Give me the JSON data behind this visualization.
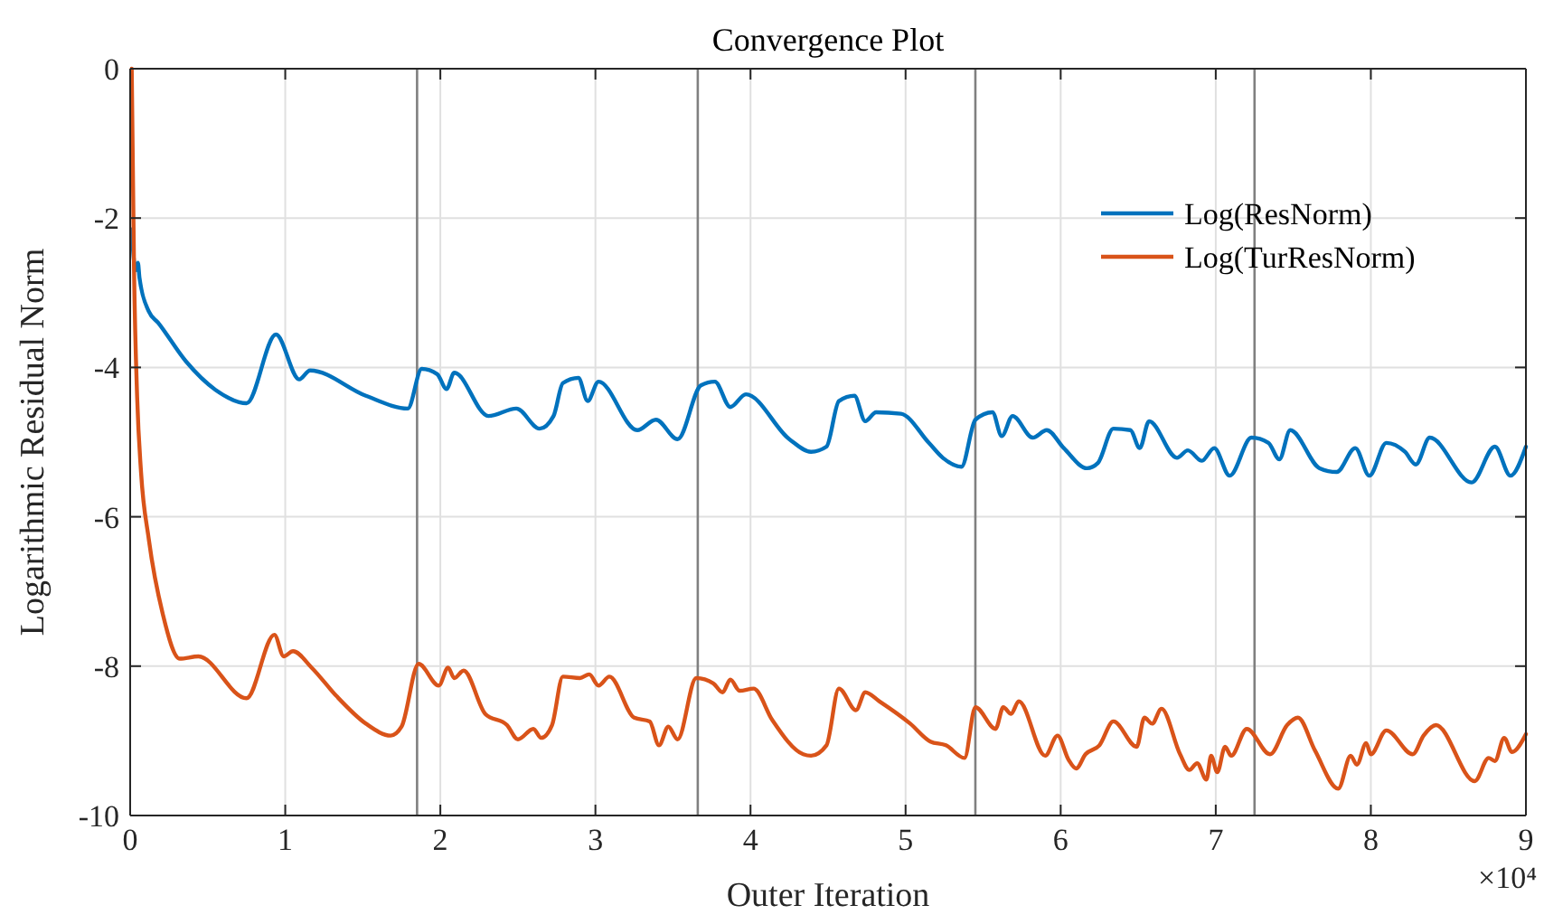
{
  "chart_data": {
    "type": "line",
    "title": "Convergence Plot",
    "xlabel": "Outer Iteration",
    "ylabel": "Logarithmic Residual Norm",
    "xlim": [
      0,
      9
    ],
    "ylim": [
      -10,
      0
    ],
    "xticks": [
      0,
      1,
      2,
      3,
      4,
      5,
      6,
      7,
      8,
      9
    ],
    "yticks": [
      -10,
      -8,
      -6,
      -4,
      -2,
      0
    ],
    "grid": true,
    "legend": "top right",
    "line_style": "solid",
    "annotations": [
      "×10⁴"
    ],
    "ref_lines": [
      {
        "axis": "x",
        "value": 1.85,
        "color": "#808080"
      },
      {
        "axis": "x",
        "value": 3.66,
        "color": "#808080"
      },
      {
        "axis": "x",
        "value": 5.45,
        "color": "#808080"
      },
      {
        "axis": "x",
        "value": 7.25,
        "color": "#808080"
      }
    ],
    "series": [
      {
        "name": "Log(ResNorm)",
        "color": "#0072bd",
        "x": [
          0.01,
          0.035,
          0.05,
          0.06,
          0.12,
          0.18,
          0.36,
          0.55,
          0.75,
          0.94,
          1.09,
          1.16,
          1.52,
          1.79,
          1.88,
          1.98,
          2.04,
          2.09,
          2.31,
          2.49,
          2.64,
          2.73,
          2.79,
          2.89,
          2.95,
          3.02,
          3.27,
          3.39,
          3.53,
          3.68,
          3.77,
          3.87,
          3.97,
          4.25,
          4.39,
          4.49,
          4.57,
          4.67,
          4.74,
          4.81,
          4.97,
          5.15,
          5.24,
          5.36,
          5.45,
          5.56,
          5.62,
          5.69,
          5.82,
          5.91,
          6.02,
          6.17,
          6.24,
          6.34,
          6.45,
          6.51,
          6.57,
          6.75,
          6.82,
          6.91,
          6.99,
          7.09,
          7.23,
          7.34,
          7.41,
          7.48,
          7.67,
          7.78,
          7.9,
          7.99,
          8.1,
          8.22,
          8.29,
          8.38,
          8.65,
          8.8,
          8.9,
          9.0
        ],
        "values": [
          -2.15,
          -2.7,
          -2.6,
          -2.8,
          -3.25,
          -3.4,
          -3.92,
          -4.3,
          -4.48,
          -3.56,
          -4.16,
          -4.04,
          -4.38,
          -4.55,
          -4.02,
          -4.09,
          -4.29,
          -4.07,
          -4.65,
          -4.55,
          -4.82,
          -4.65,
          -4.21,
          -4.14,
          -4.45,
          -4.19,
          -4.84,
          -4.7,
          -4.96,
          -4.24,
          -4.19,
          -4.53,
          -4.36,
          -4.96,
          -5.13,
          -5.06,
          -4.45,
          -4.38,
          -4.72,
          -4.6,
          -4.62,
          -5.01,
          -5.21,
          -5.33,
          -4.7,
          -4.6,
          -4.92,
          -4.65,
          -4.94,
          -4.84,
          -5.08,
          -5.35,
          -5.28,
          -4.82,
          -4.84,
          -5.08,
          -4.72,
          -5.21,
          -5.11,
          -5.25,
          -5.08,
          -5.45,
          -4.94,
          -5.01,
          -5.23,
          -4.84,
          -5.35,
          -5.4,
          -5.08,
          -5.45,
          -5.01,
          -5.13,
          -5.3,
          -4.94,
          -5.54,
          -5.06,
          -5.45,
          -5.06
        ]
      },
      {
        "name": "Log(TurResNorm)",
        "color": "#d95319",
        "x": [
          0.01,
          0.025,
          0.045,
          0.07,
          0.12,
          0.21,
          0.32,
          0.44,
          0.75,
          0.93,
          0.99,
          1.05,
          1.17,
          1.33,
          1.52,
          1.68,
          1.75,
          1.86,
          1.99,
          2.05,
          2.09,
          2.15,
          2.29,
          2.43,
          2.5,
          2.6,
          2.65,
          2.72,
          2.79,
          2.9,
          2.96,
          3.02,
          3.09,
          3.25,
          3.35,
          3.41,
          3.47,
          3.53,
          3.65,
          3.76,
          3.82,
          3.87,
          3.93,
          4.02,
          4.14,
          4.34,
          4.39,
          4.49,
          4.57,
          4.68,
          4.74,
          4.83,
          5.03,
          5.16,
          5.26,
          5.38,
          5.45,
          5.58,
          5.63,
          5.68,
          5.73,
          5.9,
          5.98,
          6.05,
          6.1,
          6.16,
          6.25,
          6.34,
          6.49,
          6.54,
          6.59,
          6.65,
          6.77,
          6.83,
          6.88,
          6.94,
          6.97,
          7.01,
          7.06,
          7.1,
          7.2,
          7.35,
          7.46,
          7.53,
          7.64,
          7.79,
          7.87,
          7.91,
          7.97,
          8.0,
          8.1,
          8.27,
          8.34,
          8.42,
          8.67,
          8.76,
          8.8,
          8.86,
          8.91,
          9.0
        ],
        "values": [
          0,
          -2.7,
          -4.4,
          -5.4,
          -6.3,
          -7.3,
          -7.9,
          -7.87,
          -8.43,
          -7.58,
          -7.87,
          -7.8,
          -8.02,
          -8.4,
          -8.77,
          -8.93,
          -8.81,
          -7.97,
          -8.26,
          -8.02,
          -8.16,
          -8.06,
          -8.64,
          -8.79,
          -8.98,
          -8.84,
          -8.96,
          -8.79,
          -8.14,
          -8.16,
          -8.11,
          -8.26,
          -8.14,
          -8.69,
          -8.74,
          -9.06,
          -8.81,
          -8.98,
          -8.16,
          -8.23,
          -8.35,
          -8.18,
          -8.33,
          -8.3,
          -8.72,
          -9.18,
          -9.2,
          -9.06,
          -8.3,
          -8.59,
          -8.35,
          -8.47,
          -8.77,
          -9.01,
          -9.06,
          -9.23,
          -8.55,
          -8.84,
          -8.55,
          -8.64,
          -8.47,
          -9.2,
          -8.93,
          -9.25,
          -9.37,
          -9.18,
          -9.06,
          -8.74,
          -9.08,
          -8.69,
          -8.77,
          -8.57,
          -9.18,
          -9.39,
          -9.3,
          -9.52,
          -9.2,
          -9.42,
          -9.08,
          -9.2,
          -8.84,
          -9.18,
          -8.79,
          -8.69,
          -9.13,
          -9.64,
          -9.2,
          -9.32,
          -9.03,
          -9.18,
          -8.86,
          -9.18,
          -8.93,
          -8.79,
          -9.54,
          -9.23,
          -9.27,
          -8.96,
          -9.15,
          -8.91
        ]
      }
    ]
  }
}
